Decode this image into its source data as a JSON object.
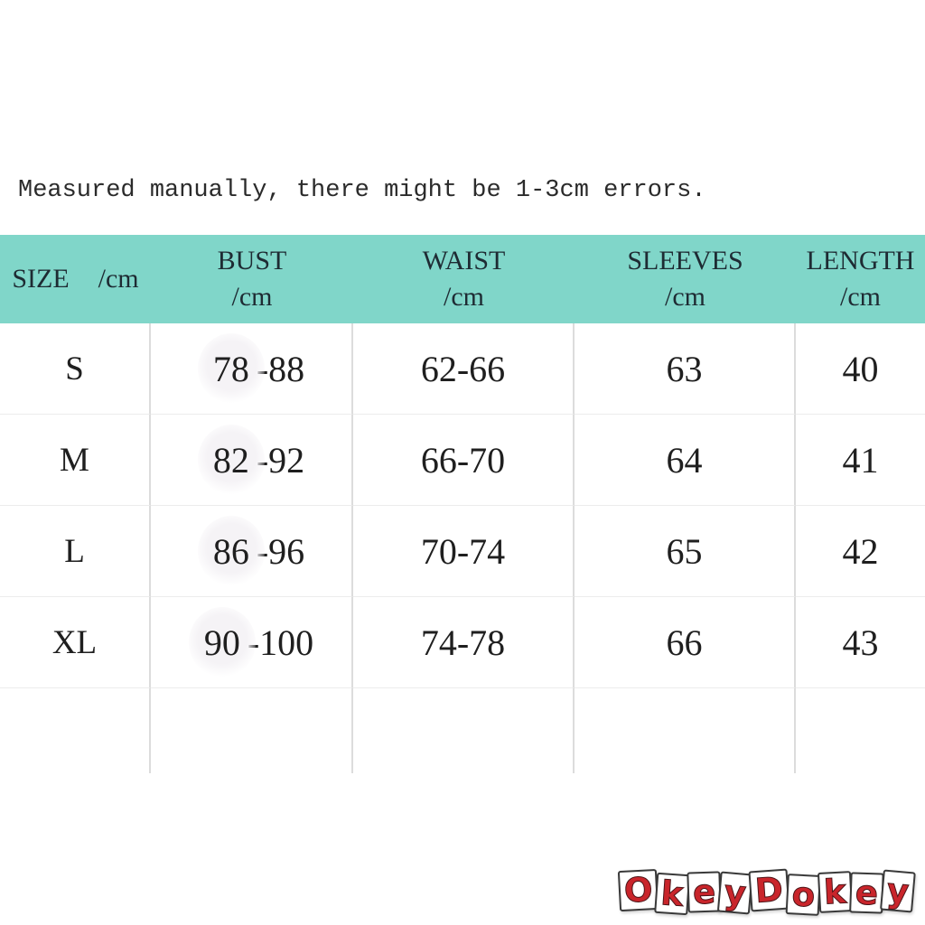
{
  "note": "Measured manually, there might be 1-3cm errors.",
  "colors": {
    "header_bg": "#80d6c9",
    "text": "#1f1f1f",
    "grid_vertical": "#dcdcdc",
    "grid_horizontal": "#ececec",
    "logo_red": "#c9252b"
  },
  "table": {
    "header": {
      "size_label": "SIZE",
      "size_unit": "/cm",
      "bust_label": "BUST",
      "bust_unit": "/cm",
      "waist_label": "WAIST",
      "waist_unit": "/cm",
      "sleeves_label": "SLEEVES",
      "sleeves_unit": "/cm",
      "length_label": "LENGTH",
      "length_unit": "/cm"
    },
    "rows": [
      {
        "size": "S",
        "bust_patch": "78",
        "bust_rest": "-88",
        "waist": "62-66",
        "sleeves": "63",
        "length": "40"
      },
      {
        "size": "M",
        "bust_patch": "82",
        "bust_rest": "-92",
        "waist": "66-70",
        "sleeves": "64",
        "length": "41"
      },
      {
        "size": "L",
        "bust_patch": "86",
        "bust_rest": "-96",
        "waist": "70-74",
        "sleeves": "65",
        "length": "42"
      },
      {
        "size": "XL",
        "bust_patch": "90",
        "bust_rest": "-100",
        "waist": "74-78",
        "sleeves": "66",
        "length": "43"
      }
    ]
  },
  "logo": {
    "text": "OkeyDokey",
    "letters": [
      "O",
      "k",
      "e",
      "y",
      "D",
      "o",
      "k",
      "e",
      "y"
    ]
  },
  "chart_data": {
    "type": "table",
    "title": "Measured manually, there might be 1-3cm errors.",
    "columns": [
      "SIZE /cm",
      "BUST /cm",
      "WAIST /cm",
      "SLEEVES /cm",
      "LENGTH /cm"
    ],
    "rows": [
      [
        "S",
        "78-88",
        "62-66",
        "63",
        "40"
      ],
      [
        "M",
        "82-92",
        "66-70",
        "64",
        "41"
      ],
      [
        "L",
        "86-96",
        "70-74",
        "65",
        "42"
      ],
      [
        "XL",
        "90-100",
        "74-78",
        "66",
        "43"
      ]
    ],
    "layout": {
      "header_background": "#80d6c9",
      "grid": "light vertical and horizontal separators, no outer border",
      "empty_trailing_row": true
    }
  }
}
